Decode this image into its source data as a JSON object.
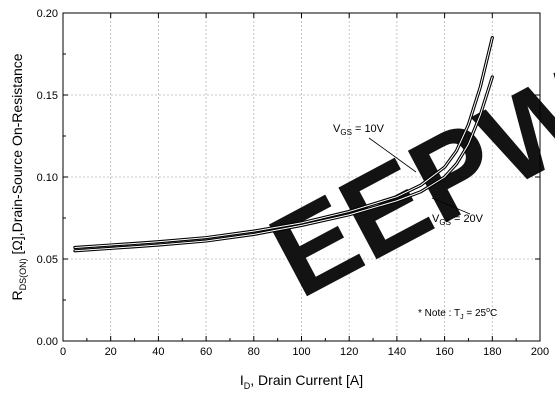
{
  "chart_data": {
    "type": "line",
    "xlabel": {
      "main": "I",
      "sub": "D",
      "rest": ", Drain Current [A]"
    },
    "ylabel": {
      "main": "R",
      "sub": "DS(ON)",
      "rest": " [Ω],Drain-Source On-Resistance"
    },
    "xlim": [
      0,
      200
    ],
    "ylim": [
      0.0,
      0.2
    ],
    "xticks": [
      "0",
      "20",
      "40",
      "60",
      "80",
      "100",
      "120",
      "140",
      "160",
      "180",
      "200"
    ],
    "yticks": [
      "0.00",
      "0.05",
      "0.10",
      "0.15",
      "0.20"
    ],
    "grid": true,
    "series": [
      {
        "name": "VGS = 10V",
        "label": {
          "main": "V",
          "sub": "GS",
          "rest": " = 10V"
        },
        "x": [
          5,
          20,
          40,
          60,
          80,
          100,
          120,
          140,
          150,
          160,
          165,
          170,
          175,
          180
        ],
        "y": [
          0.057,
          0.0585,
          0.0605,
          0.063,
          0.067,
          0.072,
          0.079,
          0.088,
          0.095,
          0.106,
          0.116,
          0.132,
          0.155,
          0.185
        ]
      },
      {
        "name": "VGS = 20V",
        "label": {
          "main": "V",
          "sub": "GS",
          "rest": " = 20V"
        },
        "x": [
          5,
          20,
          40,
          60,
          80,
          100,
          120,
          140,
          150,
          160,
          165,
          170,
          175,
          180
        ],
        "y": [
          0.055,
          0.0565,
          0.0585,
          0.061,
          0.065,
          0.0705,
          0.077,
          0.0855,
          0.091,
          0.1,
          0.108,
          0.12,
          0.138,
          0.161
        ]
      }
    ],
    "note": {
      "main": "* Note : T",
      "sub": "J",
      "mid": " = 25",
      "sup": "o",
      "rest": "C"
    }
  },
  "watermark": {
    "text": "EEPW",
    "color": "#e8383d"
  },
  "colors": {
    "line": "#000000",
    "grid": "#b8b8b8",
    "axis": "#000000"
  }
}
